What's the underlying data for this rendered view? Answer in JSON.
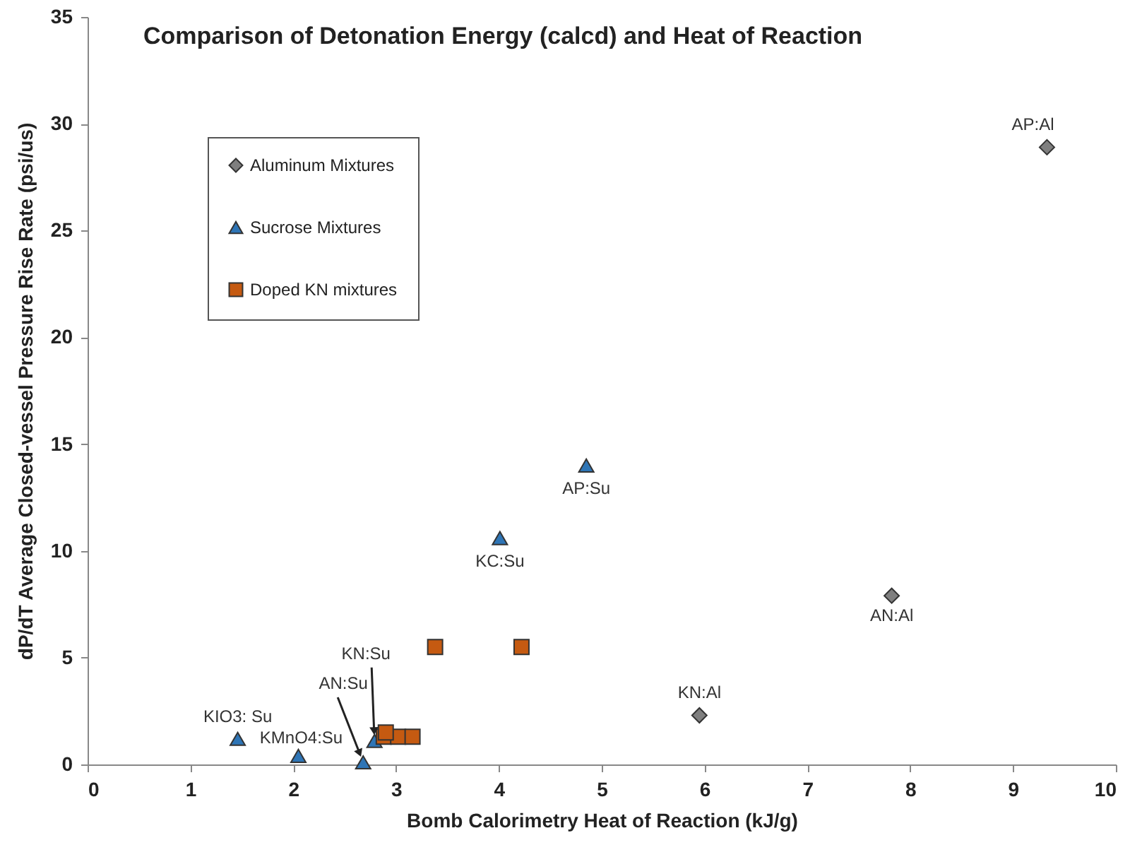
{
  "chart_data": {
    "type": "scatter",
    "title": "Comparison of Detonation Energy (calcd) and Heat of Reaction",
    "xlabel": "Bomb Calorimetry Heat of Reaction (kJ/g)",
    "ylabel": "dP/dT Average Closed-vessel Pressure Rise Rate (psi/us)",
    "xlim": [
      0,
      10
    ],
    "xticks": [
      0,
      1,
      2,
      3,
      4,
      5,
      6,
      7,
      8,
      9,
      10
    ],
    "ylim": [
      0,
      35
    ],
    "yticks": [
      0,
      5,
      10,
      15,
      20,
      25,
      30,
      35
    ],
    "grid": false,
    "legend": "top left",
    "series": [
      {
        "name": "Aluminum Mixtures",
        "color": "#7f7f7f",
        "marker": "diamond",
        "x": [
          9.33,
          7.82,
          5.95
        ],
        "values": [
          28.9,
          7.9,
          2.3
        ]
      },
      {
        "name": "Sucrose Mixtures",
        "color": "#2e75b6",
        "marker": "triangle",
        "x": [
          4.85,
          4.01,
          1.46,
          2.05,
          2.68,
          2.79
        ],
        "values": [
          14.0,
          10.6,
          1.2,
          0.4,
          0.1,
          1.1
        ]
      },
      {
        "name": "Doped KN mixtures",
        "color": "#c55a11",
        "marker": "square",
        "x": [
          3.38,
          4.22,
          2.88,
          3.02,
          3.16,
          2.9
        ],
        "values": [
          5.5,
          5.5,
          1.3,
          1.3,
          1.3,
          1.5
        ]
      }
    ],
    "annotations": [
      {
        "text": "AP:Al",
        "x": 9.33,
        "y": 28.9
      },
      {
        "text": "AN:Al",
        "x": 7.82,
        "y": 7.9
      },
      {
        "text": "KN:Al",
        "x": 5.95,
        "y": 2.3
      },
      {
        "text": "AP:Su",
        "x": 4.85,
        "y": 14.0
      },
      {
        "text": "KC:Su",
        "x": 4.01,
        "y": 10.6
      },
      {
        "text": "KIO3: Su",
        "x": 1.46,
        "y": 1.2
      },
      {
        "text": "KMnO4:Su",
        "x": 2.05,
        "y": 0.4
      },
      {
        "text": "AN:Su",
        "x": 2.68,
        "y": 0.1
      },
      {
        "text": "KN:Su",
        "x": 2.79,
        "y": 1.1
      }
    ]
  }
}
